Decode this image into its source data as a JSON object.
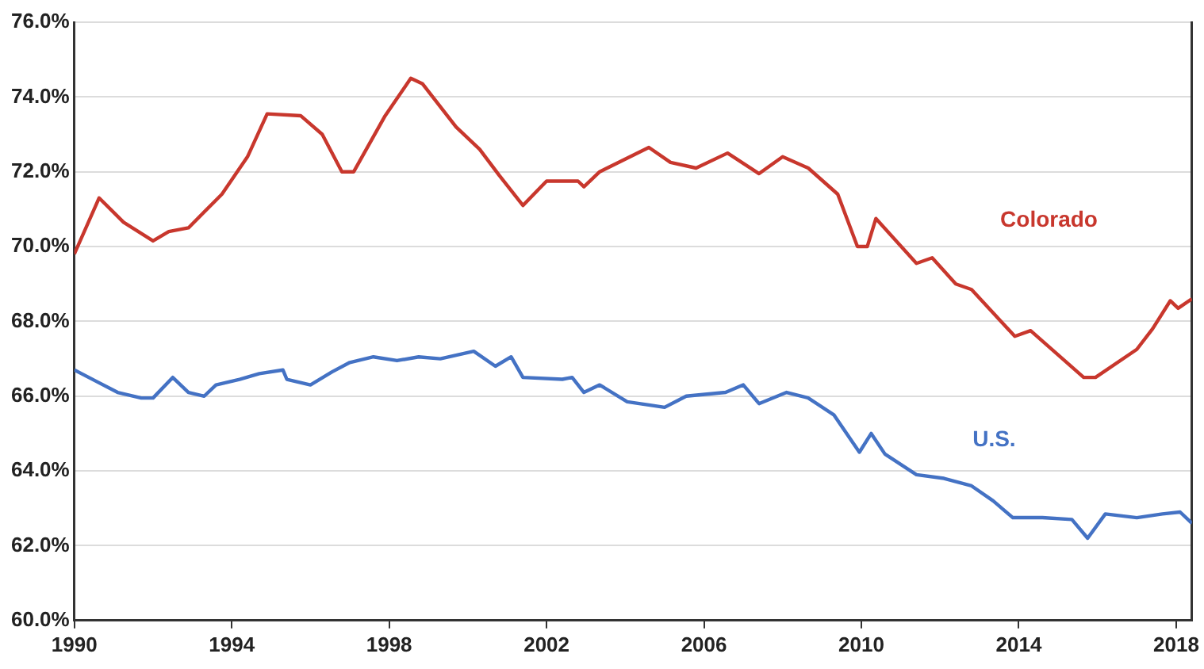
{
  "chart_data": {
    "type": "line",
    "xlim": [
      1990,
      2018.4
    ],
    "xticks": [
      1990,
      1994,
      1998,
      2002,
      2006,
      2010,
      2014,
      2018
    ],
    "ylim": [
      60,
      76
    ],
    "yticks": [
      {
        "value": 60,
        "label": "60.0%"
      },
      {
        "value": 62,
        "label": "62.0%"
      },
      {
        "value": 64,
        "label": "64.0%"
      },
      {
        "value": 66,
        "label": "66.0%"
      },
      {
        "value": 68,
        "label": "68.0%"
      },
      {
        "value": 70,
        "label": "70.0%"
      },
      {
        "value": 72,
        "label": "72.0%"
      },
      {
        "value": 74,
        "label": "74.0%"
      },
      {
        "value": 76,
        "label": "76.0%"
      }
    ],
    "grid": "y",
    "marker": "none",
    "line_style": "solid",
    "legend": false,
    "series": [
      {
        "name": "Colorado",
        "color": "#c8372d",
        "x": [
          1990,
          1990.63,
          1991.25,
          1992.0,
          1992.4,
          1992.9,
          1993.75,
          1994.4,
          1994.9,
          1995.75,
          1996.3,
          1996.8,
          1997.1,
          1997.9,
          1998.55,
          1998.85,
          1999.7,
          2000.3,
          2000.8,
          2001.4,
          2002.0,
          2002.8,
          2002.95,
          2003.35,
          2004.6,
          2005.15,
          2005.8,
          2006.6,
          2007.4,
          2008.0,
          2008.65,
          2009.4,
          2009.9,
          2010.15,
          2010.37,
          2011.4,
          2011.8,
          2012.4,
          2012.8,
          2013.9,
          2014.3,
          2015.65,
          2015.95,
          2017.0,
          2017.4,
          2017.85,
          2018.05,
          2018.4
        ],
        "values": [
          69.8,
          71.3,
          70.65,
          70.15,
          70.4,
          70.5,
          71.4,
          72.4,
          73.55,
          73.5,
          73.0,
          72.0,
          72.0,
          73.5,
          74.5,
          74.35,
          73.2,
          72.6,
          71.9,
          71.1,
          71.75,
          71.75,
          71.6,
          72.0,
          72.65,
          72.25,
          72.1,
          72.5,
          71.95,
          72.4,
          72.1,
          71.4,
          70.0,
          70.0,
          70.75,
          69.55,
          69.7,
          69.0,
          68.85,
          67.6,
          67.75,
          66.5,
          66.5,
          67.25,
          67.8,
          68.55,
          68.35,
          68.6
        ]
      },
      {
        "name": "U.S.",
        "color": "#4472c4",
        "x": [
          1990,
          1990.55,
          1991.1,
          1991.7,
          1992.0,
          1992.5,
          1992.9,
          1993.3,
          1993.6,
          1994.2,
          1994.7,
          1995.3,
          1995.4,
          1996.0,
          1996.55,
          1997.0,
          1997.6,
          1998.2,
          1998.75,
          1999.3,
          2000.15,
          2000.7,
          2001.1,
          2001.4,
          2002.4,
          2002.65,
          2002.95,
          2003.35,
          2004.05,
          2005.0,
          2005.55,
          2006.55,
          2007.0,
          2007.4,
          2008.1,
          2008.65,
          2009.3,
          2009.95,
          2010.25,
          2010.6,
          2011.4,
          2012.1,
          2012.8,
          2013.35,
          2013.85,
          2014.6,
          2015.35,
          2015.75,
          2016.2,
          2017.0,
          2017.65,
          2018.1,
          2018.4
        ],
        "values": [
          66.7,
          66.4,
          66.1,
          65.95,
          65.95,
          66.5,
          66.1,
          66.0,
          66.3,
          66.45,
          66.6,
          66.7,
          66.45,
          66.3,
          66.65,
          66.9,
          67.05,
          66.95,
          67.05,
          67.0,
          67.2,
          66.8,
          67.05,
          66.5,
          66.45,
          66.5,
          66.1,
          66.3,
          65.85,
          65.7,
          66.0,
          66.1,
          66.3,
          65.8,
          66.1,
          65.95,
          65.5,
          64.5,
          65.0,
          64.45,
          63.9,
          63.8,
          63.6,
          63.2,
          62.75,
          62.75,
          62.7,
          62.2,
          62.85,
          62.75,
          62.85,
          62.9,
          62.6
        ]
      }
    ]
  }
}
